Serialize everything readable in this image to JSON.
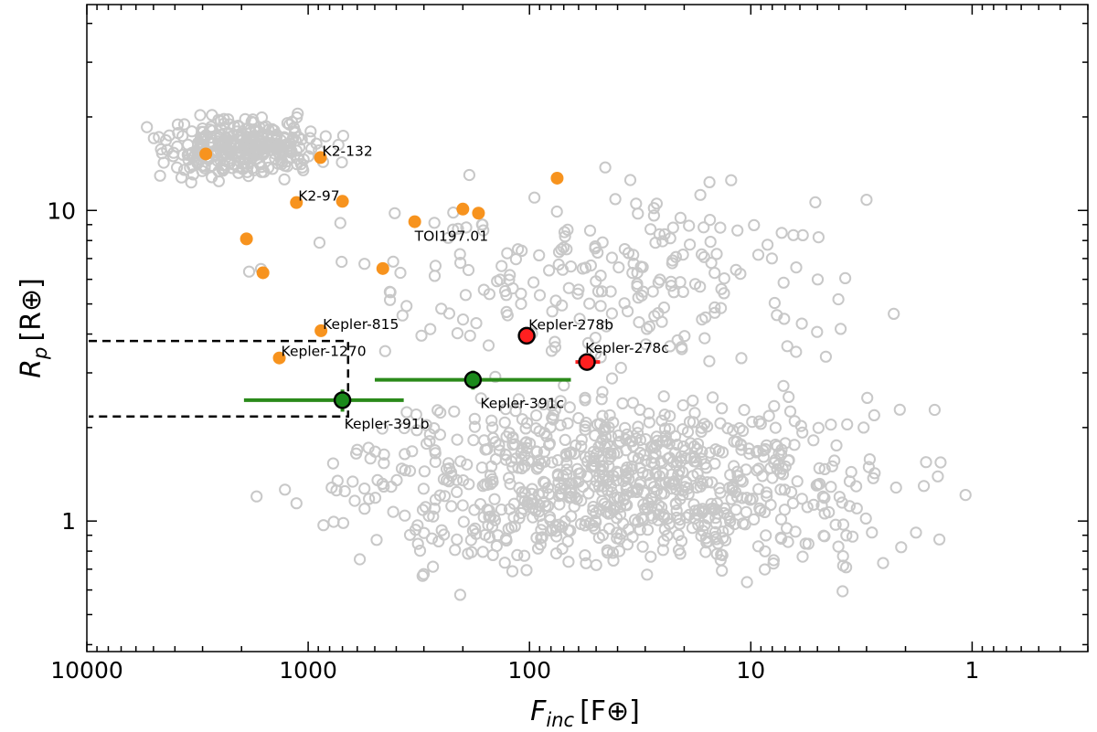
{
  "chart_data": {
    "type": "scatter",
    "title": "",
    "xlabel": {
      "main": "F",
      "sub": "inc",
      "unit": "[F⊕]"
    },
    "ylabel": {
      "main": "R",
      "sub": "p",
      "unit": "[R⊕]"
    },
    "x_scale": "log",
    "x_reversed": true,
    "xlim": [
      10000,
      0.3
    ],
    "y_scale": "log",
    "ylim": [
      0.38,
      46
    ],
    "x_ticks": [
      {
        "value": 10000,
        "label": "10000"
      },
      {
        "value": 1000,
        "label": "1000"
      },
      {
        "value": 100,
        "label": "100"
      },
      {
        "value": 10,
        "label": "10"
      },
      {
        "value": 1,
        "label": "1"
      }
    ],
    "y_ticks": [
      {
        "value": 10,
        "label": "10"
      },
      {
        "value": 1,
        "label": "1"
      }
    ],
    "grid": false,
    "colors": {
      "background_population": "#c8c8c8",
      "orange": "#f7931e",
      "green": "#1a8a1a",
      "red": "#ff2020",
      "error_green": "#2a8a1a",
      "error_red": "#ff2020",
      "box": "#000000"
    },
    "labeled_planets": [
      {
        "name": "K2-132",
        "x": 880,
        "y": 14.8,
        "color": "orange"
      },
      {
        "name": "K2-97",
        "x": 1130,
        "y": 10.6,
        "color": "orange"
      },
      {
        "name": "TOI197.01",
        "x": 330,
        "y": 9.2,
        "color": "orange"
      },
      {
        "name": "Kepler-815",
        "x": 875,
        "y": 4.1,
        "color": "orange"
      },
      {
        "name": "Kepler-1270",
        "x": 1350,
        "y": 3.35,
        "color": "orange"
      }
    ],
    "unlabeled_orange": [
      {
        "x": 2900,
        "y": 15.2
      },
      {
        "x": 1900,
        "y": 8.1
      },
      {
        "x": 1600,
        "y": 6.3
      },
      {
        "x": 700,
        "y": 10.7
      },
      {
        "x": 460,
        "y": 6.5
      },
      {
        "x": 200,
        "y": 10.1
      },
      {
        "x": 170,
        "y": 9.8
      },
      {
        "x": 75,
        "y": 12.7
      }
    ],
    "highlighted": [
      {
        "name": "Kepler-391b",
        "x": 700,
        "y": 2.45,
        "xerr_low": 330,
        "xerr_high": 1250,
        "yerr_low": 0.2,
        "yerr_high": 0.2,
        "color": "green"
      },
      {
        "name": "Kepler-391c",
        "x": 180,
        "y": 2.85,
        "xerr_low": 115,
        "xerr_high": 320,
        "yerr_low": 0.2,
        "yerr_high": 0.2,
        "color": "green"
      },
      {
        "name": "Kepler-278b",
        "x": 103,
        "y": 3.95,
        "xerr_low": 8,
        "xerr_high": 8,
        "yerr_low": 0,
        "yerr_high": 0,
        "color": "red"
      },
      {
        "name": "Kepler-278c",
        "x": 55,
        "y": 3.25,
        "xerr_low": 7,
        "xerr_high": 7,
        "yerr_low": 0,
        "yerr_high": 0,
        "color": "red"
      }
    ],
    "box_region": {
      "x_from": 10000,
      "x_to": 660,
      "y_from": 2.17,
      "y_to": 3.8
    },
    "background_population": {
      "description_count": "~1400 Kepler planets shown as grey open circles",
      "clusters": [
        {
          "x_log_range": [
            2.7,
            3.9
          ],
          "y_log_range": [
            1.05,
            1.35
          ],
          "n": 320
        },
        {
          "x_log_range": [
            -0.4,
            3.6
          ],
          "y_log_range": [
            -0.35,
            0.6
          ],
          "n": 850
        },
        {
          "x_log_range": [
            -0.4,
            3.7
          ],
          "y_log_range": [
            0.3,
            1.3
          ],
          "n": 220
        }
      ]
    }
  }
}
